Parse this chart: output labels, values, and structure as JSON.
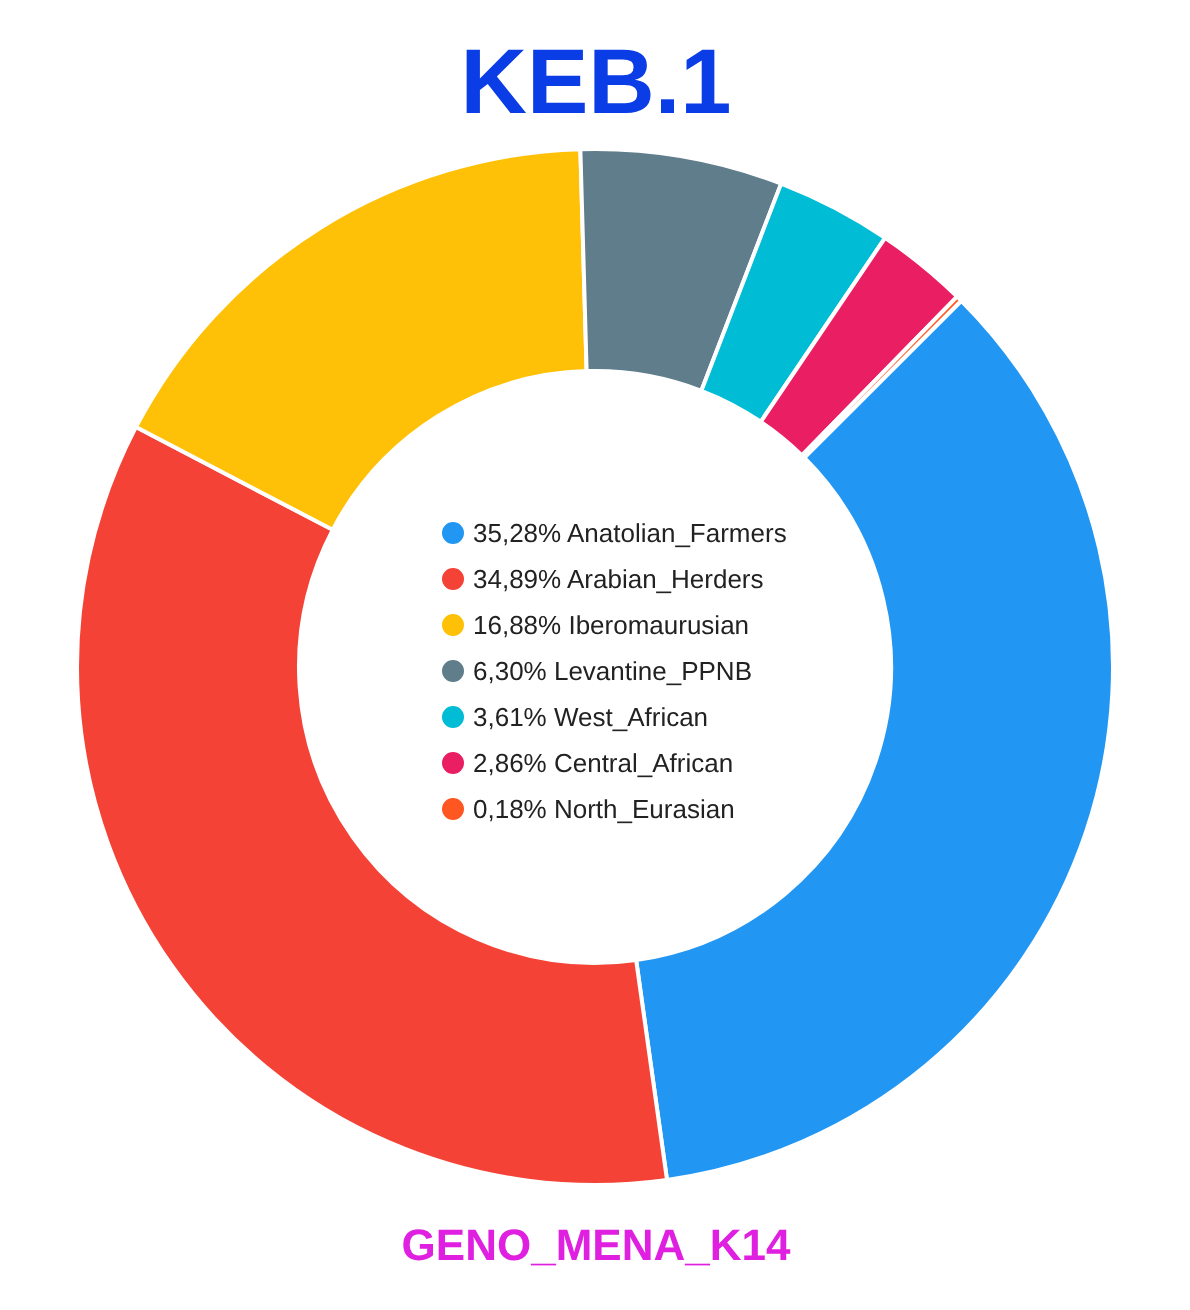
{
  "chart_data": {
    "type": "donut",
    "title": "KEB.1",
    "subtitle": "GENO_MENA_K14",
    "categories": [
      "Anatolian_Farmers",
      "Arabian_Herders",
      "Iberomaurusian",
      "Levantine_PPNB",
      "West_African",
      "Central_African",
      "North_Eurasian"
    ],
    "values": [
      35.28,
      34.89,
      16.88,
      6.3,
      3.61,
      2.86,
      0.18
    ],
    "value_labels": [
      "35,28%",
      "34,89%",
      "16,88%",
      "6,30%",
      "3,61%",
      "2,86%",
      "0,18%"
    ],
    "colors": [
      "#2196f3",
      "#f44336",
      "#ffc107",
      "#607d8b",
      "#00bcd4",
      "#e91e63",
      "#ff5722"
    ],
    "legend": "center"
  }
}
